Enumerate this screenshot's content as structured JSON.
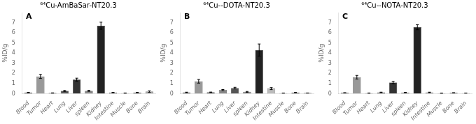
{
  "chart_data": [
    {
      "type": "bar",
      "title": "⁶⁴Cu-AmBaSar-NT20.3",
      "annotation": "A",
      "ylabel": "%ID/g",
      "categories": [
        "Blood",
        "Tumor",
        "Heart",
        "Lung",
        "Liver",
        "spleen",
        "Kidney",
        "Intestine",
        "Muscle",
        "Bone",
        "Brain"
      ],
      "values": [
        0.1,
        1.7,
        0.06,
        0.27,
        1.38,
        0.28,
        6.7,
        0.1,
        0.05,
        0.1,
        0.2
      ],
      "errors": [
        0.03,
        0.2,
        0.02,
        0.05,
        0.15,
        0.05,
        0.35,
        0.03,
        0.02,
        0.03,
        0.08
      ],
      "colors": [
        "#555555",
        "#999999",
        "#555555",
        "#555555",
        "#333333",
        "#888888",
        "#222222",
        "#888888",
        "#aaaaaa",
        "#555555",
        "#aaaaaa"
      ],
      "ylim": [
        0,
        8
      ],
      "yticks": [
        0,
        1,
        2,
        3,
        4,
        5,
        6,
        7
      ],
      "grid": false
    },
    {
      "type": "bar",
      "title": "⁶⁴Cu--DOTA-NT20.3",
      "annotation": "B",
      "ylabel": "%ID/g",
      "categories": [
        "Blood",
        "Tumor",
        "Heart",
        "Lung",
        "Liver",
        "spleen",
        "Kidney",
        "Intestine",
        "Muscle",
        "Bone",
        "Brain"
      ],
      "values": [
        0.12,
        1.22,
        0.13,
        0.35,
        0.55,
        0.18,
        4.3,
        0.5,
        0.05,
        0.1,
        0.06
      ],
      "errors": [
        0.03,
        0.18,
        0.03,
        0.06,
        0.08,
        0.04,
        0.6,
        0.1,
        0.01,
        0.02,
        0.01
      ],
      "colors": [
        "#555555",
        "#999999",
        "#555555",
        "#888888",
        "#555555",
        "#888888",
        "#222222",
        "#bbbbbb",
        "#888888",
        "#444444",
        "#666666"
      ],
      "ylim": [
        0,
        8
      ],
      "yticks": [
        0,
        1,
        2,
        3,
        4,
        5,
        6,
        7
      ],
      "grid": false
    },
    {
      "type": "bar",
      "title": "⁶⁴Cu--NOTA-NT20.3",
      "annotation": "C",
      "ylabel": "%ID/g",
      "categories": [
        "Blood",
        "Tumor",
        "Heart",
        "Lung",
        "Liver",
        "spleen",
        "Kidney",
        "Intestine",
        "Muscle",
        "Bone",
        "Brain"
      ],
      "values": [
        0.08,
        1.62,
        0.05,
        0.12,
        1.1,
        0.1,
        6.55,
        0.12,
        0.04,
        0.08,
        0.05
      ],
      "errors": [
        0.02,
        0.18,
        0.02,
        0.03,
        0.12,
        0.03,
        0.25,
        0.03,
        0.01,
        0.02,
        0.01
      ],
      "colors": [
        "#555555",
        "#999999",
        "#555555",
        "#555555",
        "#333333",
        "#888888",
        "#222222",
        "#888888",
        "#aaaaaa",
        "#555555",
        "#aaaaaa"
      ],
      "ylim": [
        0,
        8
      ],
      "yticks": [
        0,
        1,
        2,
        3,
        4,
        5,
        6,
        7
      ],
      "grid": false
    }
  ]
}
